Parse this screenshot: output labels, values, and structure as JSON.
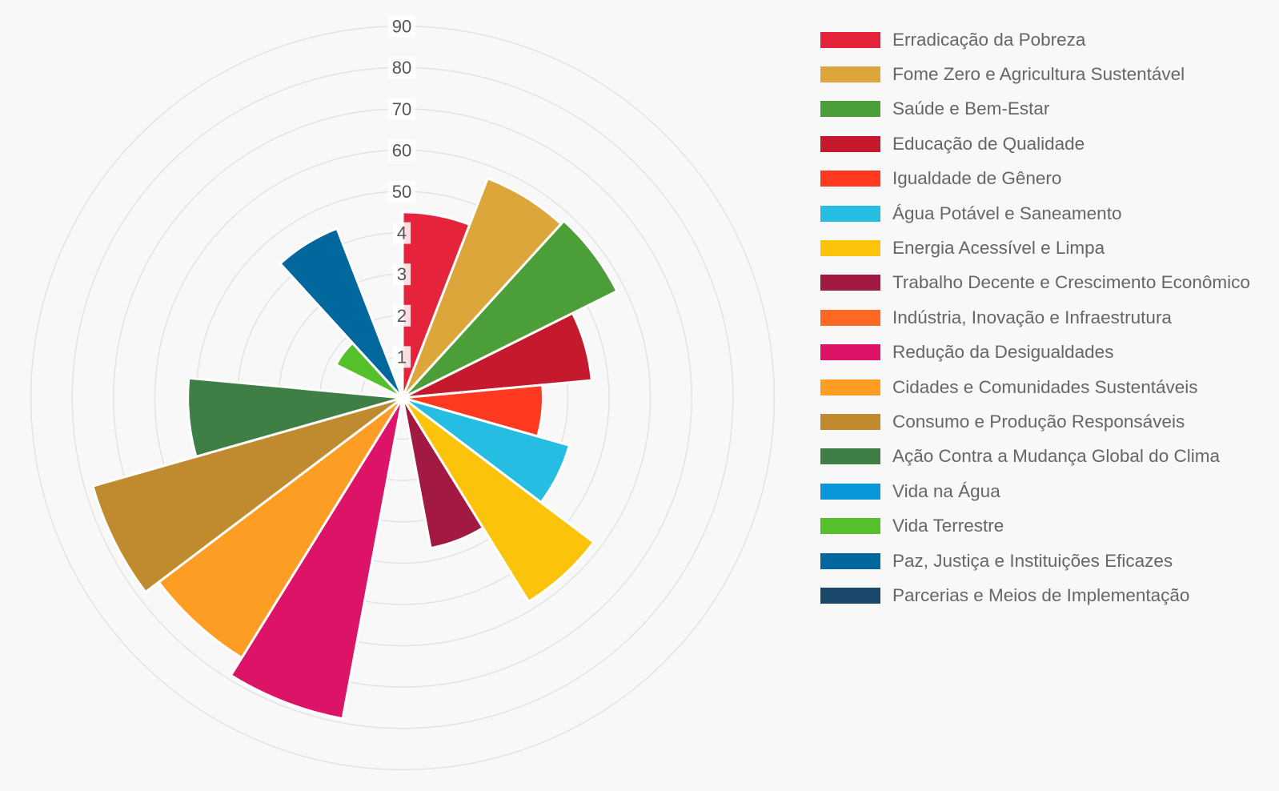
{
  "chart_data": {
    "type": "polarArea",
    "title": "",
    "r_ticks": [
      "1",
      "2",
      "3",
      "4",
      "50",
      "60",
      "70",
      "80",
      "90"
    ],
    "r_range": [
      0,
      90
    ],
    "grid": true,
    "legend_position": "right",
    "categories": [
      "Erradicação da Pobreza",
      "Fome Zero e Agricultura Sustentável",
      "Saúde e Bem-Estar",
      "Educação de Qualidade",
      "Igualdade de Gênero",
      "Água Potável e Saneamento",
      "Energia Acessível e Limpa",
      "Trabalho Decente e Crescimento Econômico",
      "Indústria, Inovação e Infraestrutura",
      "Redução da Desigualdades",
      "Cidades e Comunidades Sustentáveis",
      "Consumo e Produção Responsáveis",
      "Ação Contra a Mudança Global do Clima",
      "Vida na Água",
      "Vida Terrestre",
      "Paz, Justiça e Instituições Eficazes",
      "Parcerias e Meios de Implementação"
    ],
    "values": [
      45,
      57,
      58,
      46,
      34,
      42,
      58,
      37,
      1,
      79,
      74,
      78,
      52,
      0,
      18,
      44,
      0
    ],
    "colors": [
      "#e5243b",
      "#dda63a",
      "#4c9f38",
      "#c5192d",
      "#ff3a21",
      "#26bde2",
      "#fcc30b",
      "#a21942",
      "#fd6925",
      "#dd1367",
      "#fd9d24",
      "#bf8b2e",
      "#3f7e44",
      "#0a97d9",
      "#56c02b",
      "#00689d",
      "#19486a"
    ]
  }
}
